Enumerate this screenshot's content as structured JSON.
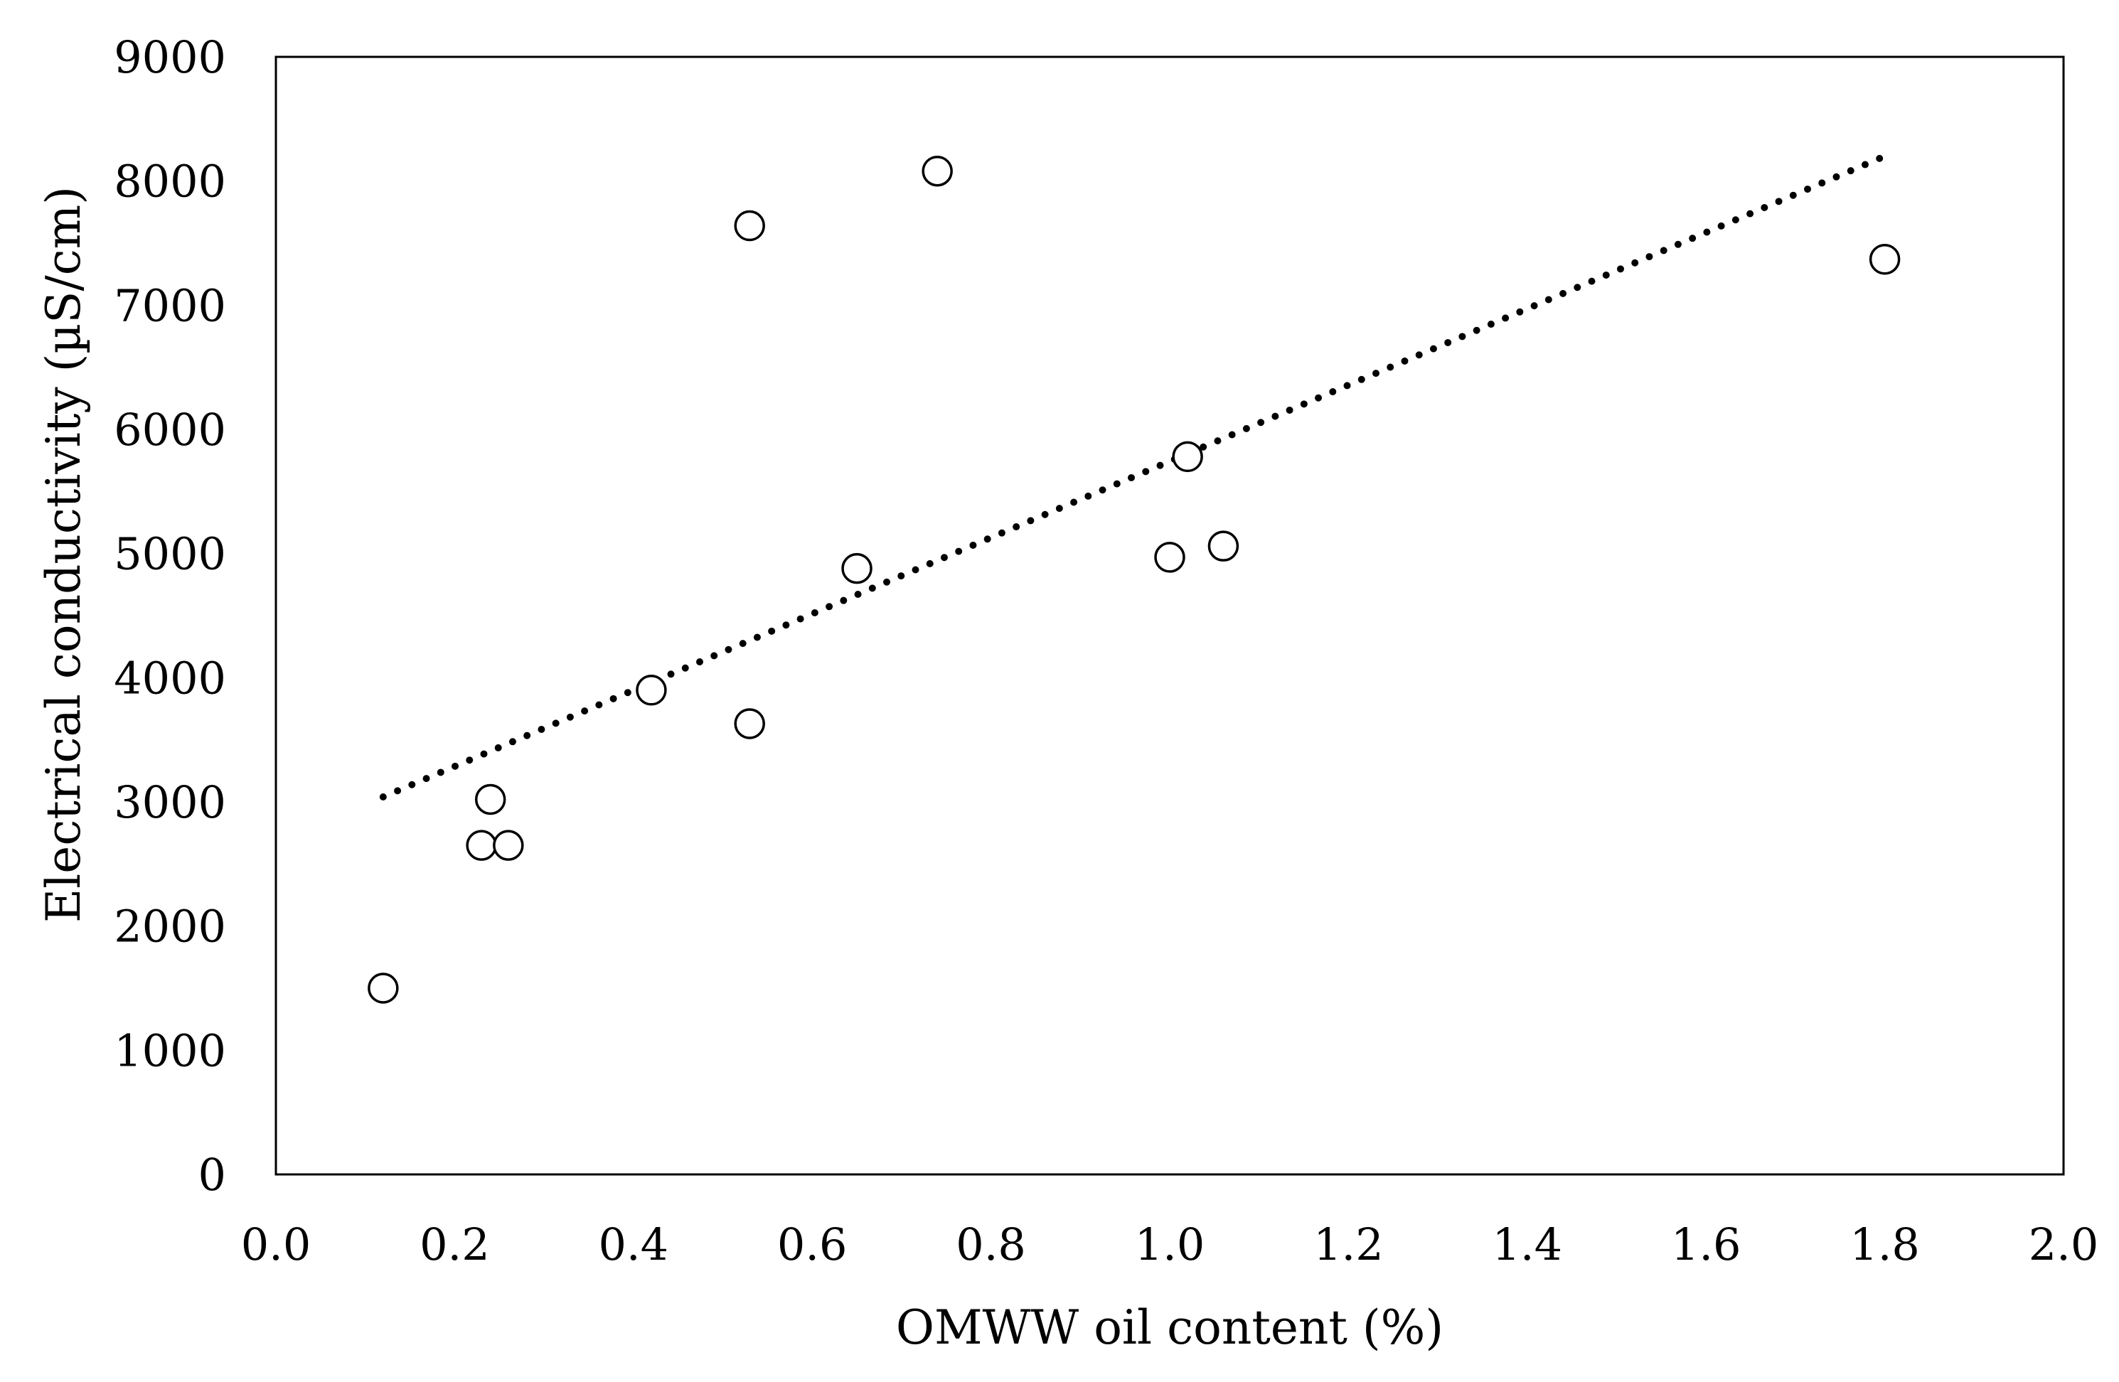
{
  "chart_data": {
    "type": "scatter",
    "title": "",
    "xlabel": "OMWW oil content (%)",
    "ylabel": "Electrical conductivity  (µS/cm)",
    "xlim": [
      0.0,
      2.0
    ],
    "ylim": [
      0,
      9000
    ],
    "x_ticks": [
      0.0,
      0.2,
      0.4,
      0.6,
      0.8,
      1.0,
      1.2,
      1.4,
      1.6,
      1.8,
      2.0
    ],
    "x_tick_labels": [
      "0.0",
      "0.2",
      "0.4",
      "0.6",
      "0.8",
      "1.0",
      "1.2",
      "1.4",
      "1.6",
      "1.8",
      "2.0"
    ],
    "y_ticks": [
      0,
      1000,
      2000,
      3000,
      4000,
      5000,
      6000,
      7000,
      8000,
      9000
    ],
    "y_tick_labels": [
      "0",
      "1000",
      "2000",
      "3000",
      "4000",
      "5000",
      "6000",
      "7000",
      "8000",
      "9000"
    ],
    "grid": false,
    "legend": "none",
    "series": [
      {
        "marker": "open-circle",
        "points": [
          {
            "x": 0.12,
            "y": 1500
          },
          {
            "x": 0.23,
            "y": 2650
          },
          {
            "x": 0.24,
            "y": 3020
          },
          {
            "x": 0.26,
            "y": 2650
          },
          {
            "x": 0.42,
            "y": 3900
          },
          {
            "x": 0.53,
            "y": 3630
          },
          {
            "x": 0.53,
            "y": 7640
          },
          {
            "x": 0.65,
            "y": 4880
          },
          {
            "x": 0.74,
            "y": 8080
          },
          {
            "x": 1.0,
            "y": 4970
          },
          {
            "x": 1.02,
            "y": 5780
          },
          {
            "x": 1.06,
            "y": 5060
          },
          {
            "x": 1.8,
            "y": 7370
          }
        ]
      }
    ],
    "trendline": {
      "style": "dotted",
      "x0": 0.12,
      "y0": 3040,
      "x1": 1.8,
      "y1": 8200
    },
    "colors": {
      "marker_stroke": "#000000",
      "marker_fill": "#ffffff",
      "trendline": "#000000",
      "axes": "#000000"
    }
  }
}
